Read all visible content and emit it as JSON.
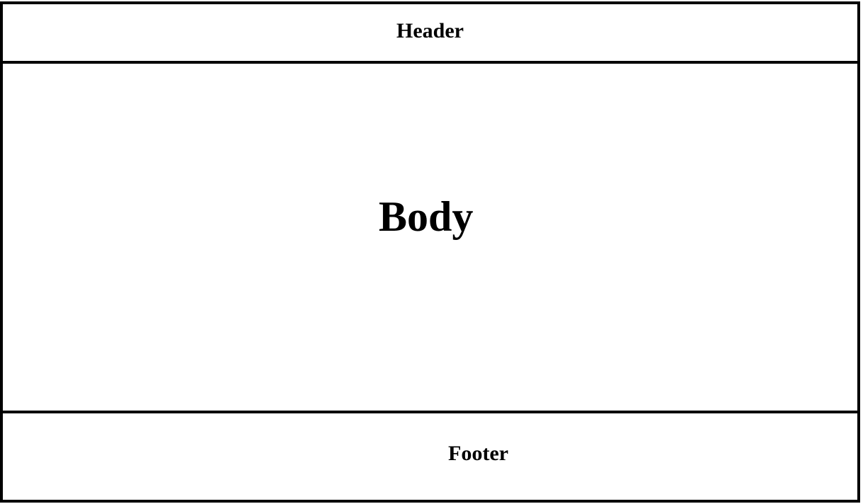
{
  "layout": {
    "header": {
      "label": "Header"
    },
    "body": {
      "label": "Body"
    },
    "footer": {
      "label": "Footer"
    }
  },
  "colors": {
    "border": "#000000",
    "background": "#ffffff",
    "text": "#000000"
  }
}
